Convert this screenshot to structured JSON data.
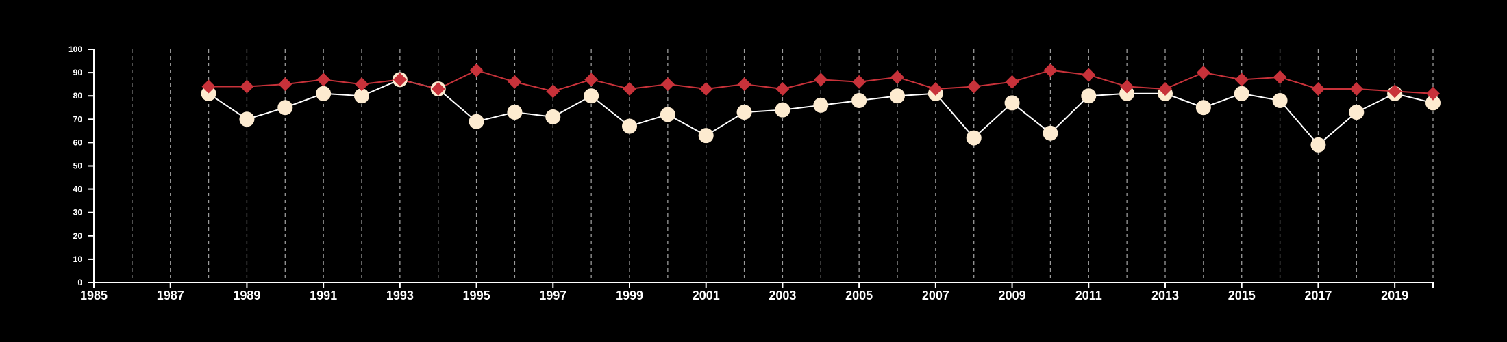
{
  "chart_data": {
    "type": "line",
    "title": "",
    "xlabel": "",
    "ylabel": "",
    "xlim": [
      1985,
      2020
    ],
    "ylim": [
      0,
      100
    ],
    "x_ticks": [
      1985,
      1987,
      1989,
      1991,
      1993,
      1995,
      1997,
      1999,
      2001,
      2003,
      2005,
      2007,
      2009,
      2011,
      2013,
      2015,
      2017,
      2019
    ],
    "y_ticks": [
      0,
      10,
      20,
      30,
      40,
      50,
      60,
      70,
      80,
      90,
      100
    ],
    "grid": {
      "vertical_dashed_lines_at_years": [
        1986,
        1987,
        1988,
        1989,
        1990,
        1991,
        1992,
        1993,
        1994,
        1995,
        1996,
        1997,
        1998,
        1999,
        2000,
        2001,
        2002,
        2003,
        2004,
        2005,
        2006,
        2007,
        2008,
        2009,
        2010,
        2011,
        2012,
        2013,
        2014,
        2015,
        2016,
        2017,
        2018,
        2019,
        2020
      ],
      "horizontal": false
    },
    "legend": "none",
    "background_color": "#000000",
    "axis_color": "#ffffff",
    "series": [
      {
        "marker": "circle",
        "color": "#fdebd0",
        "line_color": "#ffffff",
        "x": [
          1988,
          1989,
          1990,
          1991,
          1992,
          1993,
          1994,
          1995,
          1996,
          1997,
          1998,
          1999,
          2000,
          2001,
          2002,
          2003,
          2004,
          2005,
          2006,
          2007,
          2008,
          2009,
          2010,
          2011,
          2012,
          2013,
          2014,
          2015,
          2016,
          2017,
          2018,
          2019,
          2020
        ],
        "values": [
          81,
          70,
          75,
          81,
          80,
          87,
          83,
          69,
          73,
          71,
          80,
          67,
          72,
          63,
          73,
          74,
          76,
          78,
          80,
          81,
          62,
          77,
          64,
          80,
          81,
          81,
          75,
          81,
          78,
          59,
          73,
          81,
          77
        ]
      },
      {
        "marker": "diamond",
        "color": "#c8323a",
        "line_color": "#c8323a",
        "x": [
          1988,
          1989,
          1990,
          1991,
          1992,
          1993,
          1994,
          1995,
          1996,
          1997,
          1998,
          1999,
          2000,
          2001,
          2002,
          2003,
          2004,
          2005,
          2006,
          2007,
          2008,
          2009,
          2010,
          2011,
          2012,
          2013,
          2014,
          2015,
          2016,
          2017,
          2018,
          2019,
          2020
        ],
        "values": [
          84,
          84,
          85,
          87,
          85,
          87,
          83,
          91,
          86,
          82,
          87,
          83,
          85,
          83,
          85,
          83,
          87,
          86,
          88,
          83,
          84,
          86,
          91,
          89,
          84,
          83,
          90,
          87,
          88,
          83,
          83,
          82,
          81
        ]
      }
    ]
  }
}
